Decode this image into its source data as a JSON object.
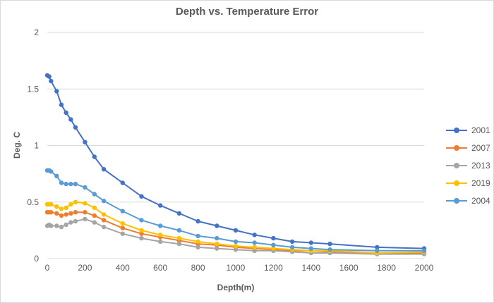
{
  "chart_data": {
    "type": "line",
    "title": "Depth vs. Temperature Error",
    "xlabel": "Depth(m)",
    "ylabel": "Deg. C",
    "xlim": [
      0,
      2000
    ],
    "ylim": [
      0,
      2
    ],
    "x_ticks": [
      "0",
      "200",
      "400",
      "600",
      "800",
      "1000",
      "1200",
      "1400",
      "1600",
      "1800",
      "2000"
    ],
    "y_ticks": [
      "0",
      "0.5",
      "1",
      "1.5",
      "2"
    ],
    "grid": "horizontal",
    "legend_position": "right",
    "x": [
      0,
      10,
      20,
      50,
      75,
      100,
      125,
      150,
      200,
      250,
      300,
      400,
      500,
      600,
      700,
      800,
      900,
      1000,
      1100,
      1200,
      1300,
      1400,
      1500,
      1750,
      2000
    ],
    "series": [
      {
        "name": "2001",
        "color": "#4472C4",
        "values": [
          1.62,
          1.61,
          1.57,
          1.48,
          1.36,
          1.29,
          1.23,
          1.16,
          1.03,
          0.9,
          0.79,
          0.67,
          0.55,
          0.47,
          0.4,
          0.33,
          0.29,
          0.25,
          0.21,
          0.18,
          0.15,
          0.14,
          0.13,
          0.1,
          0.09
        ]
      },
      {
        "name": "2007",
        "color": "#ED7D31",
        "values": [
          0.41,
          0.41,
          0.41,
          0.4,
          0.38,
          0.39,
          0.4,
          0.41,
          0.41,
          0.38,
          0.34,
          0.27,
          0.22,
          0.19,
          0.16,
          0.13,
          0.12,
          0.1,
          0.09,
          0.08,
          0.07,
          0.07,
          0.06,
          0.05,
          0.05
        ]
      },
      {
        "name": "2013",
        "color": "#A5A5A5",
        "values": [
          0.29,
          0.3,
          0.29,
          0.29,
          0.28,
          0.3,
          0.32,
          0.33,
          0.35,
          0.32,
          0.28,
          0.22,
          0.18,
          0.15,
          0.13,
          0.1,
          0.09,
          0.08,
          0.07,
          0.07,
          0.06,
          0.05,
          0.05,
          0.04,
          0.04
        ]
      },
      {
        "name": "2019",
        "color": "#FFC000",
        "values": [
          0.48,
          0.48,
          0.48,
          0.46,
          0.44,
          0.45,
          0.48,
          0.5,
          0.49,
          0.45,
          0.39,
          0.31,
          0.25,
          0.21,
          0.18,
          0.15,
          0.13,
          0.11,
          0.1,
          0.09,
          0.08,
          0.07,
          0.07,
          0.05,
          0.06
        ]
      },
      {
        "name": "2004",
        "color": "#5B9BD5",
        "values": [
          0.78,
          0.78,
          0.77,
          0.73,
          0.67,
          0.66,
          0.66,
          0.66,
          0.63,
          0.57,
          0.51,
          0.42,
          0.34,
          0.29,
          0.25,
          0.2,
          0.18,
          0.15,
          0.14,
          0.12,
          0.1,
          0.09,
          0.08,
          0.07,
          0.07
        ]
      }
    ]
  }
}
